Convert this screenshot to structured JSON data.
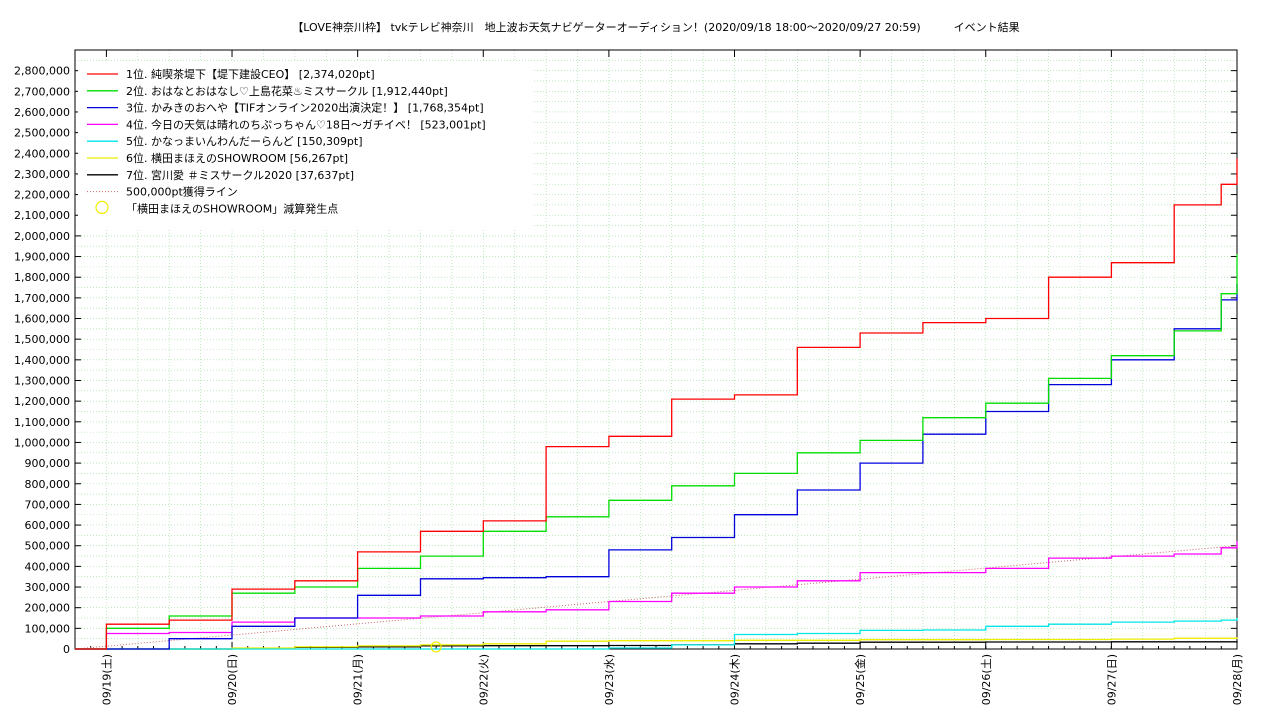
{
  "chart_data": {
    "type": "line",
    "title": "【LOVE神奈川枠】 tvkテレビ神奈川　地上波お天気ナビゲーターオーディション！(2020/09/18 18:00～2020/09/27 20:59)　　　イベント結果",
    "xlabel": "",
    "ylabel": "",
    "x_range": [
      "2020/09/18 18:00",
      "2020/09/28 00:00"
    ],
    "ylim": [
      0,
      2900000
    ],
    "y_ticks": [
      "0",
      "100,000",
      "200,000",
      "300,000",
      "400,000",
      "500,000",
      "600,000",
      "700,000",
      "800,000",
      "900,000",
      "1,000,000",
      "1,100,000",
      "1,200,000",
      "1,300,000",
      "1,400,000",
      "1,500,000",
      "1,600,000",
      "1,700,000",
      "1,800,000",
      "1,900,000",
      "2,000,000",
      "2,100,000",
      "2,200,000",
      "2,300,000",
      "2,400,000",
      "2,500,000",
      "2,600,000",
      "2,700,000",
      "2,800,000"
    ],
    "x_ticks": [
      {
        "date": "2020/09/19",
        "label": "09/19(土)"
      },
      {
        "date": "2020/09/20",
        "label": "09/20(日)"
      },
      {
        "date": "2020/09/21",
        "label": "09/21(月)"
      },
      {
        "date": "2020/09/22",
        "label": "09/22(火)"
      },
      {
        "date": "2020/09/23",
        "label": "09/23(水)"
      },
      {
        "date": "2020/09/24",
        "label": "09/24(木)"
      },
      {
        "date": "2020/09/25",
        "label": "09/25(金)"
      },
      {
        "date": "2020/09/26",
        "label": "09/26(土)"
      },
      {
        "date": "2020/09/27",
        "label": "09/27(日)"
      },
      {
        "date": "2020/09/28",
        "label": "09/28(月)"
      }
    ],
    "grid": true,
    "legend_position": "top-left",
    "series": [
      {
        "name": "1位. 純喫茶堤下【堤下建設CEO】 [2,374,020pt]",
        "color": "#ff0000",
        "x": [
          "09/18 18:00",
          "09/19 00:00",
          "09/19 12:00",
          "09/20 00:00",
          "09/20 12:00",
          "09/21 00:00",
          "09/21 12:00",
          "09/22 00:00",
          "09/22 12:00",
          "09/23 00:00",
          "09/23 12:00",
          "09/24 00:00",
          "09/24 12:00",
          "09/25 00:00",
          "09/25 12:00",
          "09/26 00:00",
          "09/26 12:00",
          "09/27 00:00",
          "09/27 12:00",
          "09/27 20:59",
          "09/28 00:00"
        ],
        "values": [
          0,
          120000,
          140000,
          290000,
          330000,
          470000,
          570000,
          620000,
          980000,
          1030000,
          1210000,
          1230000,
          1460000,
          1530000,
          1580000,
          1600000,
          1800000,
          1870000,
          2150000,
          2250000,
          2374020
        ]
      },
      {
        "name": "2位. おはなとおはなし♡上島花菜♨ミスサークル [1,912,440pt]",
        "color": "#00dd00",
        "x": [
          "09/18 18:00",
          "09/19 00:00",
          "09/19 12:00",
          "09/20 00:00",
          "09/20 12:00",
          "09/21 00:00",
          "09/21 12:00",
          "09/22 00:00",
          "09/22 12:00",
          "09/23 00:00",
          "09/23 12:00",
          "09/24 00:00",
          "09/24 12:00",
          "09/25 00:00",
          "09/25 12:00",
          "09/26 00:00",
          "09/26 12:00",
          "09/27 00:00",
          "09/27 12:00",
          "09/27 20:59",
          "09/28 00:00"
        ],
        "values": [
          0,
          100000,
          160000,
          270000,
          300000,
          390000,
          450000,
          570000,
          640000,
          720000,
          790000,
          850000,
          950000,
          1010000,
          1120000,
          1190000,
          1310000,
          1420000,
          1540000,
          1720000,
          1912440
        ]
      },
      {
        "name": "3位. かみきのおへや【TIFオンライン2020出演決定！】 [1,768,354pt]",
        "color": "#0000dd",
        "x": [
          "09/18 18:00",
          "09/19 00:00",
          "09/19 12:00",
          "09/20 00:00",
          "09/20 12:00",
          "09/21 00:00",
          "09/21 12:00",
          "09/22 00:00",
          "09/22 12:00",
          "09/23 00:00",
          "09/23 12:00",
          "09/24 00:00",
          "09/24 12:00",
          "09/25 00:00",
          "09/25 12:00",
          "09/26 00:00",
          "09/26 12:00",
          "09/27 00:00",
          "09/27 12:00",
          "09/27 20:59",
          "09/28 00:00"
        ],
        "values": [
          0,
          0,
          50000,
          110000,
          150000,
          260000,
          340000,
          345000,
          350000,
          480000,
          540000,
          650000,
          770000,
          900000,
          1040000,
          1150000,
          1280000,
          1400000,
          1550000,
          1690000,
          1768354
        ]
      },
      {
        "name": "4位. 今日の天気は晴れのちぷっちゃん♡18日〜ガチイベ！ [523,001pt]",
        "color": "#ff00ff",
        "x": [
          "09/18 18:00",
          "09/19 00:00",
          "09/19 12:00",
          "09/20 00:00",
          "09/20 12:00",
          "09/21 00:00",
          "09/21 12:00",
          "09/22 00:00",
          "09/22 12:00",
          "09/23 00:00",
          "09/23 12:00",
          "09/24 00:00",
          "09/24 12:00",
          "09/25 00:00",
          "09/25 12:00",
          "09/26 00:00",
          "09/26 12:00",
          "09/27 00:00",
          "09/27 12:00",
          "09/27 20:59",
          "09/28 00:00"
        ],
        "values": [
          0,
          75000,
          80000,
          130000,
          150000,
          150000,
          160000,
          180000,
          190000,
          230000,
          270000,
          300000,
          330000,
          370000,
          370000,
          390000,
          440000,
          450000,
          460000,
          490000,
          523001
        ]
      },
      {
        "name": "5位. かなっまいんわんだーらんど [150,309pt]",
        "color": "#00e5e5",
        "x": [
          "09/18 18:00",
          "09/23 00:00",
          "09/23 12:00",
          "09/24 00:00",
          "09/24 12:00",
          "09/25 00:00",
          "09/25 12:00",
          "09/26 00:00",
          "09/26 12:00",
          "09/27 00:00",
          "09/27 12:00",
          "09/27 20:59",
          "09/28 00:00"
        ],
        "values": [
          0,
          5000,
          20000,
          70000,
          75000,
          90000,
          92000,
          110000,
          120000,
          130000,
          135000,
          140000,
          150309
        ]
      },
      {
        "name": "6位. 横田まほえのSHOWROOM [56,267pt]",
        "color": "#eeee00",
        "x": [
          "09/18 18:00",
          "09/19 12:00",
          "09/20 00:00",
          "09/20 12:00",
          "09/21 00:00",
          "09/21 12:00",
          "09/22 00:00",
          "09/22 12:00",
          "09/23 00:00",
          "09/23 12:00",
          "09/24 00:00",
          "09/24 12:00",
          "09/25 00:00",
          "09/25 12:00",
          "09/26 00:00",
          "09/26 12:00",
          "09/27 00:00",
          "09/27 12:00",
          "09/28 00:00"
        ],
        "values": [
          0,
          0,
          5000,
          10000,
          15000,
          20000,
          25000,
          38000,
          40000,
          40000,
          42000,
          42000,
          45000,
          45000,
          46000,
          46000,
          48000,
          52000,
          56267
        ]
      },
      {
        "name": "7位. 宮川愛 ＃ミスサークル2020 [37,637pt]",
        "color": "#000000",
        "x": [
          "09/18 18:00",
          "09/20 00:00",
          "09/20 12:00",
          "09/21 00:00",
          "09/21 12:00",
          "09/22 00:00",
          "09/23 00:00",
          "09/23 12:00",
          "09/24 00:00",
          "09/24 12:00",
          "09/25 00:00",
          "09/26 00:00",
          "09/27 00:00",
          "09/28 00:00"
        ],
        "values": [
          0,
          2000,
          8000,
          10000,
          15000,
          16000,
          17000,
          20000,
          25000,
          28000,
          33000,
          34000,
          35000,
          37637
        ]
      }
    ],
    "reference_line": {
      "name": "500,000pt獲得ライン",
      "color": "#cc6666",
      "x": [
        "09/18 18:00",
        "09/28 00:00"
      ],
      "values": [
        0,
        500000
      ]
    },
    "marker": {
      "name": "「横田まほえのSHOWROOM」減算発生点",
      "color": "#eeee00",
      "x": "09/21 15:00",
      "value": 10000
    }
  }
}
